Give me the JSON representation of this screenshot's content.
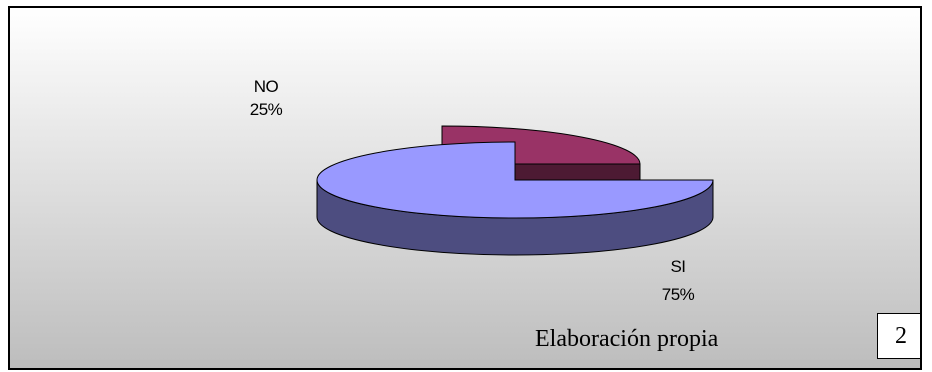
{
  "chart_data": {
    "type": "pie",
    "style": "3d-exploded",
    "slices": [
      {
        "label": "NO",
        "value": 25,
        "percent_label": "25%",
        "top_color": "#993366",
        "side_color": "#4d1a33"
      },
      {
        "label": "SI",
        "value": 75,
        "percent_label": "75%",
        "top_color": "#9999ff",
        "side_color": "#4d4d80"
      }
    ],
    "background_gradient": [
      "#ffffff",
      "#bdbdbd"
    ]
  },
  "source_note": "Elaboración propia",
  "page_number": "2"
}
